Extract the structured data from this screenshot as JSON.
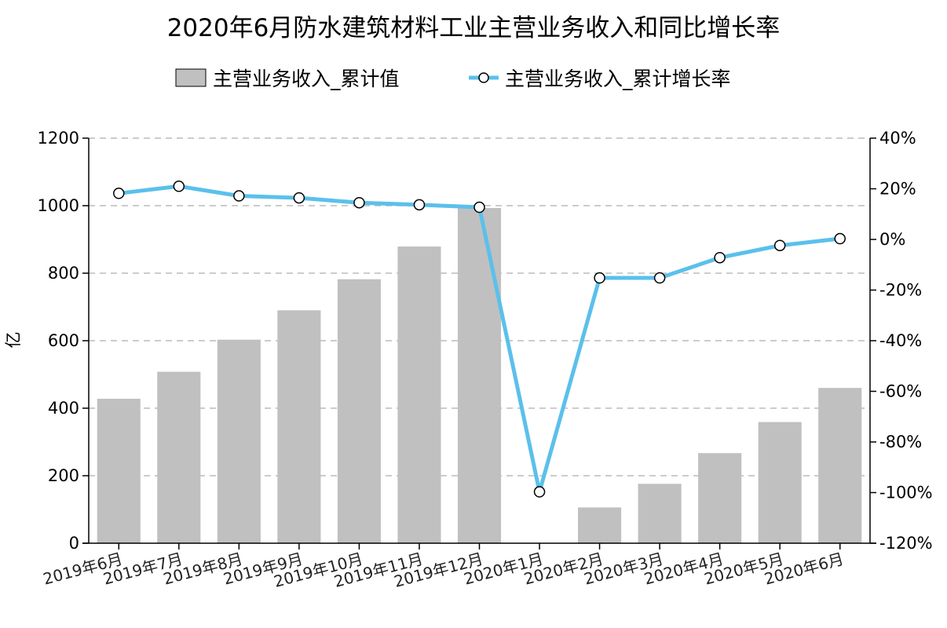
{
  "chart_data": {
    "type": "bar+line",
    "title": "2020年6月防水建筑材料工业主营业务收入和同比增长率",
    "categories": [
      "2019年6月",
      "2019年7月",
      "2019年8月",
      "2019年9月",
      "2019年10月",
      "2019年11月",
      "2019年12月",
      "2020年1月",
      "2020年2月",
      "2020年3月",
      "2020年4月",
      "2020年5月",
      "2020年6月"
    ],
    "series": [
      {
        "name": "主营业务收入_累计值",
        "type": "bar",
        "axis": "left",
        "values": [
          428,
          508,
          603,
          690,
          782,
          879,
          993,
          null,
          106,
          176,
          267,
          359,
          460
        ]
      },
      {
        "name": "主营业务收入_累计增长率",
        "type": "line",
        "axis": "right",
        "values": [
          18.2,
          21.0,
          17.2,
          16.4,
          14.5,
          13.7,
          12.7,
          -99.7,
          -15.2,
          -15.2,
          -7.2,
          -2.4,
          0.3
        ]
      }
    ],
    "ylabel": "亿",
    "ylim": [
      0,
      1200
    ],
    "yticks": [
      "0",
      "200",
      "400",
      "600",
      "800",
      "1000",
      "1200"
    ],
    "y2lim": [
      -120,
      40
    ],
    "y2ticks": [
      "-120%",
      "-100%",
      "-80%",
      "-60%",
      "-40%",
      "-20%",
      "0%",
      "20%",
      "40%"
    ],
    "grid": true,
    "legend": "top-center",
    "colors": {
      "bar": "#c0c0c0",
      "line": "#5bc0eb",
      "marker_fill": "#ffffff",
      "marker_stroke": "#000000",
      "grid": "#bbbbbb"
    }
  }
}
